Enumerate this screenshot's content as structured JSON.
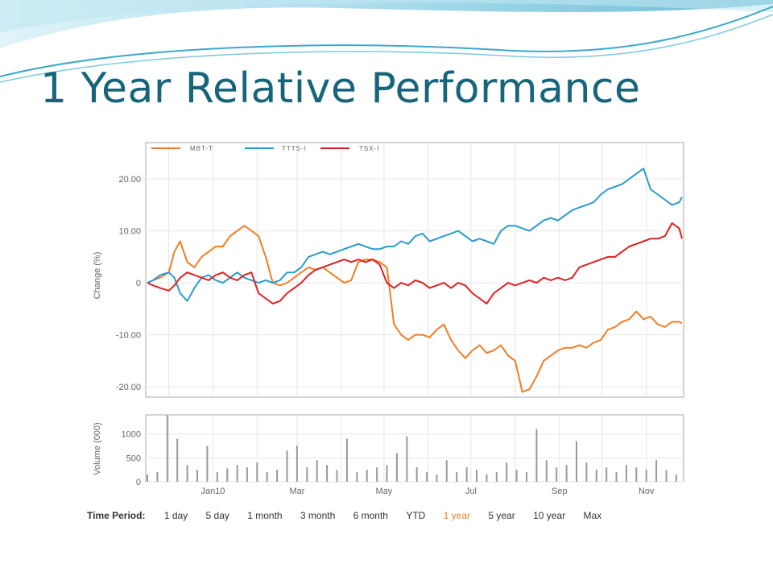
{
  "slide": {
    "title": "1 Year Relative Performance"
  },
  "chart_data": [
    {
      "type": "line",
      "title": "",
      "xlabel": "",
      "ylabel": "Change (%)",
      "ylim": [
        -22,
        27
      ],
      "yticks": [
        20,
        10,
        0,
        -10,
        -20
      ],
      "ytick_labels": [
        "20.00",
        "10.00",
        "0",
        "-10.00",
        "-20.00"
      ],
      "x_ticks": [
        "Jan10",
        "Mar",
        "May",
        "Jul",
        "Sep",
        "Nov"
      ],
      "x_range": [
        "2009-11-16",
        "2010-11-26"
      ],
      "legend_position": "top-left",
      "grid": true,
      "series": [
        {
          "name": "MBT-T",
          "color": "#f07e26",
          "x": [
            "2009-11-16",
            "2009-11-20",
            "2009-11-25",
            "2009-12-01",
            "2009-12-05",
            "2009-12-09",
            "2009-12-14",
            "2009-12-19",
            "2009-12-24",
            "2009-12-29",
            "2010-01-03",
            "2010-01-08",
            "2010-01-13",
            "2010-01-18",
            "2010-01-23",
            "2010-01-28",
            "2010-02-02",
            "2010-02-07",
            "2010-02-12",
            "2010-02-17",
            "2010-02-22",
            "2010-02-27",
            "2010-03-04",
            "2010-03-09",
            "2010-03-14",
            "2010-03-19",
            "2010-03-24",
            "2010-03-29",
            "2010-04-03",
            "2010-04-08",
            "2010-04-13",
            "2010-04-18",
            "2010-04-23",
            "2010-04-28",
            "2010-05-03",
            "2010-05-08",
            "2010-05-13",
            "2010-05-18",
            "2010-05-23",
            "2010-05-28",
            "2010-06-02",
            "2010-06-07",
            "2010-06-12",
            "2010-06-17",
            "2010-06-22",
            "2010-06-27",
            "2010-07-02",
            "2010-07-07",
            "2010-07-12",
            "2010-07-17",
            "2010-07-22",
            "2010-07-27",
            "2010-08-01",
            "2010-08-06",
            "2010-08-11",
            "2010-08-16",
            "2010-08-21",
            "2010-08-26",
            "2010-08-31",
            "2010-09-05",
            "2010-09-10",
            "2010-09-15",
            "2010-09-20",
            "2010-09-25",
            "2010-09-30",
            "2010-10-05",
            "2010-10-10",
            "2010-10-15",
            "2010-10-20",
            "2010-10-25",
            "2010-10-30",
            "2010-11-04",
            "2010-11-09",
            "2010-11-14",
            "2010-11-19",
            "2010-11-24",
            "2010-11-26"
          ],
          "values": [
            0,
            0.5,
            1,
            2,
            6,
            8,
            4,
            3,
            5,
            6,
            7,
            7,
            9,
            10,
            11,
            10,
            9,
            5,
            0,
            -0.5,
            0,
            1,
            2,
            3,
            2.5,
            3,
            2,
            1,
            0,
            0.5,
            4,
            4.5,
            4.5,
            4,
            3,
            -8,
            -10,
            -11,
            -10,
            -10,
            -10.5,
            -9,
            -8,
            -11,
            -13,
            -14.5,
            -13,
            -12,
            -13.5,
            -13,
            -12,
            -14,
            -15,
            -21,
            -20.5,
            -18,
            -15,
            -14,
            -13,
            -12.5,
            -12.5,
            -12,
            -12.5,
            -11.5,
            -11,
            -9,
            -8.5,
            -7.5,
            -7,
            -5.5,
            -7,
            -6.5,
            -8,
            -8.5,
            -7.5,
            -7.5,
            -7.8
          ]
        },
        {
          "name": "TTTS-I",
          "color": "#2a9bd0",
          "x": [
            "2009-11-16",
            "2009-11-20",
            "2009-11-25",
            "2009-12-01",
            "2009-12-05",
            "2009-12-09",
            "2009-12-14",
            "2009-12-19",
            "2009-12-24",
            "2009-12-29",
            "2010-01-03",
            "2010-01-08",
            "2010-01-13",
            "2010-01-18",
            "2010-01-23",
            "2010-01-28",
            "2010-02-02",
            "2010-02-07",
            "2010-02-12",
            "2010-02-17",
            "2010-02-22",
            "2010-02-27",
            "2010-03-04",
            "2010-03-09",
            "2010-03-14",
            "2010-03-19",
            "2010-03-24",
            "2010-03-29",
            "2010-04-03",
            "2010-04-08",
            "2010-04-13",
            "2010-04-18",
            "2010-04-23",
            "2010-04-28",
            "2010-05-03",
            "2010-05-08",
            "2010-05-13",
            "2010-05-18",
            "2010-05-23",
            "2010-05-28",
            "2010-06-02",
            "2010-06-07",
            "2010-06-12",
            "2010-06-17",
            "2010-06-22",
            "2010-06-27",
            "2010-07-02",
            "2010-07-07",
            "2010-07-12",
            "2010-07-17",
            "2010-07-22",
            "2010-07-27",
            "2010-08-01",
            "2010-08-06",
            "2010-08-11",
            "2010-08-16",
            "2010-08-21",
            "2010-08-26",
            "2010-08-31",
            "2010-09-05",
            "2010-09-10",
            "2010-09-15",
            "2010-09-20",
            "2010-09-25",
            "2010-09-30",
            "2010-10-05",
            "2010-10-10",
            "2010-10-15",
            "2010-10-20",
            "2010-10-25",
            "2010-10-30",
            "2010-11-04",
            "2010-11-09",
            "2010-11-14",
            "2010-11-19",
            "2010-11-24",
            "2010-11-26"
          ],
          "values": [
            0,
            0.5,
            1.5,
            2,
            1,
            -2,
            -3.5,
            -1,
            1,
            1.5,
            0.5,
            0,
            1,
            2,
            1,
            0.5,
            0,
            0.5,
            0,
            0.5,
            2,
            2,
            3,
            5,
            5.5,
            6,
            5.5,
            6,
            6.5,
            7,
            7.5,
            7,
            6.5,
            6.5,
            7,
            7,
            8,
            7.5,
            9,
            9.5,
            8,
            8.5,
            9,
            9.5,
            10,
            9,
            8,
            8.5,
            8,
            7.5,
            10,
            11,
            11,
            10.5,
            10,
            11,
            12,
            12.5,
            12,
            13,
            14,
            14.5,
            15,
            15.5,
            17,
            18,
            18.5,
            19,
            20,
            21,
            22,
            18,
            17,
            16,
            15,
            15.5,
            16.5
          ]
        },
        {
          "name": "TSX-I",
          "color": "#e02020",
          "x": [
            "2009-11-16",
            "2009-11-20",
            "2009-11-25",
            "2009-12-01",
            "2009-12-05",
            "2009-12-09",
            "2009-12-14",
            "2009-12-19",
            "2009-12-24",
            "2009-12-29",
            "2010-01-03",
            "2010-01-08",
            "2010-01-13",
            "2010-01-18",
            "2010-01-23",
            "2010-01-28",
            "2010-02-02",
            "2010-02-07",
            "2010-02-12",
            "2010-02-17",
            "2010-02-22",
            "2010-02-27",
            "2010-03-04",
            "2010-03-09",
            "2010-03-14",
            "2010-03-19",
            "2010-03-24",
            "2010-03-29",
            "2010-04-03",
            "2010-04-08",
            "2010-04-13",
            "2010-04-18",
            "2010-04-23",
            "2010-04-28",
            "2010-05-03",
            "2010-05-08",
            "2010-05-13",
            "2010-05-18",
            "2010-05-23",
            "2010-05-28",
            "2010-06-02",
            "2010-06-07",
            "2010-06-12",
            "2010-06-17",
            "2010-06-22",
            "2010-06-27",
            "2010-07-02",
            "2010-07-07",
            "2010-07-12",
            "2010-07-17",
            "2010-07-22",
            "2010-07-27",
            "2010-08-01",
            "2010-08-06",
            "2010-08-11",
            "2010-08-16",
            "2010-08-21",
            "2010-08-26",
            "2010-08-31",
            "2010-09-05",
            "2010-09-10",
            "2010-09-15",
            "2010-09-20",
            "2010-09-25",
            "2010-09-30",
            "2010-10-05",
            "2010-10-10",
            "2010-10-15",
            "2010-10-20",
            "2010-10-25",
            "2010-10-30",
            "2010-11-04",
            "2010-11-09",
            "2010-11-14",
            "2010-11-19",
            "2010-11-24",
            "2010-11-26"
          ],
          "values": [
            0,
            -0.5,
            -1,
            -1.5,
            -0.5,
            1,
            2,
            1.5,
            1,
            0.5,
            1.5,
            2,
            1,
            0.5,
            1.5,
            2,
            -2,
            -3,
            -4,
            -3.5,
            -2,
            -1,
            0,
            1.5,
            2.5,
            3,
            3.5,
            4,
            4.5,
            4,
            4.5,
            4,
            4.5,
            3.5,
            0,
            -1,
            0,
            -0.5,
            0.5,
            0,
            -1,
            -0.5,
            0,
            -1,
            0,
            -0.5,
            -2,
            -3,
            -4,
            -2,
            -1,
            0,
            -0.5,
            0,
            0.5,
            0,
            1,
            0.5,
            1,
            0.5,
            1,
            3,
            3.5,
            4,
            4.5,
            5,
            5,
            6,
            7,
            7.5,
            8,
            8.5,
            8.5,
            9,
            11.5,
            10.5,
            8.5
          ]
        }
      ]
    },
    {
      "type": "bar",
      "title": "",
      "xlabel": "",
      "ylabel": "Volume (000)",
      "ylim": [
        0,
        1400
      ],
      "yticks": [
        1000,
        500,
        0
      ],
      "ytick_labels": [
        "1000",
        "500",
        "0"
      ],
      "x_ticks": [
        "Jan10",
        "Mar",
        "May",
        "Jul",
        "Sep",
        "Nov"
      ],
      "grid": true,
      "x": [
        "2009-11-16",
        "2009-11-23",
        "2009-11-30",
        "2009-12-07",
        "2009-12-14",
        "2009-12-21",
        "2009-12-28",
        "2010-01-04",
        "2010-01-11",
        "2010-01-18",
        "2010-01-25",
        "2010-02-01",
        "2010-02-08",
        "2010-02-15",
        "2010-02-22",
        "2010-03-01",
        "2010-03-08",
        "2010-03-15",
        "2010-03-22",
        "2010-03-29",
        "2010-04-05",
        "2010-04-12",
        "2010-04-19",
        "2010-04-26",
        "2010-05-03",
        "2010-05-10",
        "2010-05-17",
        "2010-05-24",
        "2010-05-31",
        "2010-06-07",
        "2010-06-14",
        "2010-06-21",
        "2010-06-28",
        "2010-07-05",
        "2010-07-12",
        "2010-07-19",
        "2010-07-26",
        "2010-08-02",
        "2010-08-09",
        "2010-08-16",
        "2010-08-23",
        "2010-08-30",
        "2010-09-06",
        "2010-09-13",
        "2010-09-20",
        "2010-09-27",
        "2010-10-04",
        "2010-10-11",
        "2010-10-18",
        "2010-10-25",
        "2010-11-01",
        "2010-11-08",
        "2010-11-15",
        "2010-11-22"
      ],
      "values": [
        150,
        200,
        1400,
        900,
        350,
        250,
        750,
        200,
        280,
        350,
        300,
        400,
        200,
        250,
        650,
        750,
        300,
        450,
        350,
        250,
        900,
        200,
        250,
        300,
        350,
        600,
        950,
        300,
        200,
        150,
        450,
        200,
        300,
        250,
        150,
        200,
        400,
        250,
        200,
        1100,
        450,
        300,
        350,
        850,
        400,
        250,
        300,
        200,
        350,
        300,
        250,
        450,
        250,
        150
      ]
    }
  ],
  "legend": {
    "items": [
      {
        "label": "MBT-T",
        "color": "#f07e26"
      },
      {
        "label": "TTTS-I",
        "color": "#2a9bd0"
      },
      {
        "label": "TSX-I",
        "color": "#e02020"
      }
    ]
  },
  "time_period": {
    "label": "Time Period:",
    "options": [
      "1 day",
      "5 day",
      "1 month",
      "3 month",
      "6 month",
      "YTD",
      "1 year",
      "5 year",
      "10 year",
      "Max"
    ],
    "active": "1 year",
    "active_color": "#f07e26"
  },
  "colors": {
    "title": "#17657a",
    "swoosh_dark": "#3fa8c8",
    "swoosh_light": "#bfe6f2"
  }
}
